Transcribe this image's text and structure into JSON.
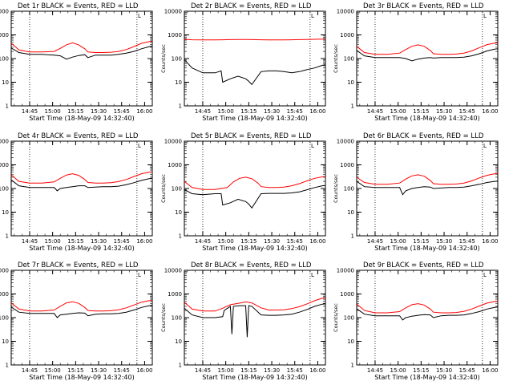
{
  "xlabel": "Start Time (18-May-09 14:32:40)",
  "ylabel": "Counts/sec",
  "x_tick_labels": [
    "14:45",
    "15:00",
    "15:15",
    "15:30",
    "15:45",
    "16:00"
  ],
  "y_tick_labels": [
    "1",
    "10",
    "100",
    "1000",
    "10000"
  ],
  "corner_mark": "L",
  "colors": {
    "events": "#000000",
    "lld": "#ff0000",
    "frame": "#000000"
  },
  "chart_data": [
    {
      "type": "line",
      "title": "Det 1r BLACK = Events, RED = LLD",
      "xlabel": "Start Time (18-May-09 14:32:40)",
      "ylabel": "Counts/sec",
      "yscale": "log",
      "ylim": [
        1,
        10000
      ],
      "vlines_min": [
        12,
        82
      ],
      "series": [
        {
          "name": "Events",
          "x": [
            0,
            5,
            12,
            20,
            28,
            32,
            36,
            40,
            44,
            48,
            50,
            55,
            60,
            65,
            70,
            75,
            80,
            85,
            90,
            92
          ],
          "y": [
            280,
            180,
            150,
            150,
            140,
            130,
            95,
            115,
            135,
            145,
            110,
            140,
            140,
            140,
            150,
            170,
            200,
            260,
            320,
            330
          ]
        },
        {
          "name": "LLD",
          "x": [
            0,
            5,
            12,
            20,
            28,
            32,
            36,
            40,
            44,
            48,
            50,
            55,
            60,
            65,
            70,
            75,
            80,
            85,
            90,
            92
          ],
          "y": [
            450,
            230,
            190,
            190,
            200,
            270,
            380,
            460,
            380,
            260,
            190,
            180,
            180,
            185,
            200,
            240,
            320,
            440,
            520,
            540
          ]
        }
      ]
    },
    {
      "type": "line",
      "title": "Det 2r BLACK = Events, RED = LLD",
      "xlabel": "Start Time (18-May-09 14:32:40)",
      "ylabel": "Counts/sec",
      "yscale": "log",
      "ylim": [
        1,
        10000
      ],
      "vlines_min": [
        12,
        82
      ],
      "series": [
        {
          "name": "Events",
          "x": [
            0,
            5,
            12,
            20,
            24,
            25,
            30,
            35,
            40,
            42,
            44,
            50,
            55,
            60,
            65,
            70,
            75,
            80,
            85,
            90,
            92
          ],
          "y": [
            90,
            40,
            25,
            25,
            30,
            10,
            14,
            18,
            14,
            11,
            8,
            28,
            30,
            30,
            28,
            25,
            28,
            34,
            40,
            52,
            55
          ]
        },
        {
          "name": "LLD",
          "x": [
            0,
            5,
            12,
            20,
            25,
            30,
            35,
            40,
            44,
            50,
            55,
            60,
            65,
            70,
            75,
            80,
            85,
            90,
            92
          ],
          "y": [
            650,
            620,
            610,
            615,
            620,
            630,
            640,
            635,
            630,
            620,
            615,
            610,
            615,
            620,
            630,
            640,
            650,
            660,
            660
          ]
        }
      ]
    },
    {
      "type": "line",
      "title": "Det 3r BLACK = Events, RED = LLD",
      "xlabel": "Start Time (18-May-09 14:32:40)",
      "ylabel": "Counts/sec",
      "yscale": "log",
      "ylim": [
        1,
        10000
      ],
      "vlines_min": [
        12,
        82
      ],
      "series": [
        {
          "name": "Events",
          "x": [
            0,
            5,
            12,
            20,
            28,
            32,
            36,
            40,
            44,
            48,
            50,
            55,
            60,
            65,
            70,
            75,
            80,
            85,
            90,
            92
          ],
          "y": [
            220,
            130,
            110,
            110,
            110,
            100,
            80,
            95,
            105,
            110,
            105,
            110,
            110,
            110,
            115,
            130,
            160,
            210,
            250,
            260
          ]
        },
        {
          "name": "LLD",
          "x": [
            0,
            5,
            12,
            20,
            28,
            32,
            36,
            40,
            44,
            48,
            50,
            55,
            60,
            65,
            70,
            75,
            80,
            85,
            90,
            92
          ],
          "y": [
            330,
            180,
            150,
            150,
            170,
            240,
            330,
            380,
            330,
            220,
            160,
            150,
            150,
            155,
            170,
            210,
            290,
            390,
            450,
            460
          ]
        }
      ]
    },
    {
      "type": "line",
      "title": "Det 4r BLACK = Events, RED = LLD",
      "xlabel": "Start Time (18-May-09 14:32:40)",
      "ylabel": "Counts/sec",
      "yscale": "log",
      "ylim": [
        1,
        10000
      ],
      "vlines_min": [
        12,
        82
      ],
      "series": [
        {
          "name": "Events",
          "x": [
            0,
            5,
            12,
            20,
            28,
            30,
            32,
            36,
            40,
            44,
            48,
            50,
            55,
            60,
            65,
            70,
            75,
            80,
            85,
            90,
            92
          ],
          "y": [
            230,
            130,
            110,
            110,
            110,
            80,
            100,
            110,
            120,
            130,
            130,
            110,
            115,
            120,
            120,
            125,
            145,
            175,
            220,
            260,
            270
          ]
        },
        {
          "name": "LLD",
          "x": [
            0,
            5,
            12,
            20,
            28,
            32,
            36,
            40,
            44,
            48,
            50,
            55,
            60,
            65,
            70,
            75,
            80,
            85,
            90,
            92
          ],
          "y": [
            380,
            200,
            170,
            170,
            190,
            270,
            370,
            420,
            360,
            240,
            180,
            170,
            170,
            175,
            195,
            240,
            320,
            420,
            490,
            500
          ]
        }
      ]
    },
    {
      "type": "line",
      "title": "Det 5r BLACK = Events, RED = LLD",
      "xlabel": "Start Time (18-May-09 14:32:40)",
      "ylabel": "Counts/sec",
      "yscale": "log",
      "ylim": [
        1,
        10000
      ],
      "vlines_min": [
        12,
        82
      ],
      "series": [
        {
          "name": "Events",
          "x": [
            0,
            5,
            12,
            20,
            24,
            25,
            30,
            35,
            40,
            42,
            44,
            50,
            55,
            60,
            65,
            70,
            75,
            80,
            85,
            90,
            92
          ],
          "y": [
            90,
            60,
            55,
            60,
            60,
            20,
            25,
            35,
            28,
            22,
            15,
            60,
            62,
            62,
            62,
            65,
            72,
            88,
            110,
            130,
            135
          ]
        },
        {
          "name": "LLD",
          "x": [
            0,
            5,
            12,
            20,
            28,
            32,
            36,
            40,
            44,
            48,
            50,
            55,
            60,
            65,
            70,
            75,
            80,
            85,
            90,
            92
          ],
          "y": [
            200,
            110,
            90,
            90,
            110,
            190,
            270,
            300,
            260,
            170,
            120,
            110,
            110,
            115,
            130,
            160,
            210,
            270,
            310,
            320
          ]
        }
      ]
    },
    {
      "type": "line",
      "title": "Det 6r BLACK = Events, RED = LLD",
      "xlabel": "Start Time (18-May-09 14:32:40)",
      "ylabel": "Counts/sec",
      "yscale": "log",
      "ylim": [
        1,
        10000
      ],
      "vlines_min": [
        12,
        82
      ],
      "series": [
        {
          "name": "Events",
          "x": [
            0,
            5,
            12,
            20,
            28,
            30,
            32,
            36,
            40,
            44,
            48,
            50,
            55,
            60,
            65,
            70,
            75,
            80,
            85,
            90,
            92
          ],
          "y": [
            200,
            120,
            110,
            110,
            110,
            55,
            80,
            100,
            110,
            120,
            115,
            100,
            105,
            110,
            110,
            115,
            130,
            150,
            180,
            200,
            205
          ]
        },
        {
          "name": "LLD",
          "x": [
            0,
            5,
            12,
            20,
            28,
            32,
            36,
            40,
            44,
            48,
            50,
            55,
            60,
            65,
            70,
            75,
            80,
            85,
            90,
            92
          ],
          "y": [
            300,
            180,
            150,
            150,
            170,
            250,
            340,
            380,
            330,
            220,
            160,
            150,
            150,
            155,
            170,
            210,
            280,
            360,
            420,
            430
          ]
        }
      ]
    },
    {
      "type": "line",
      "title": "Det 7r BLACK = Events, RED = LLD",
      "xlabel": "Start Time (18-May-09 14:32:40)",
      "ylabel": "Counts/sec",
      "yscale": "log",
      "ylim": [
        1,
        10000
      ],
      "vlines_min": [
        12,
        82
      ],
      "series": [
        {
          "name": "Events",
          "x": [
            0,
            5,
            12,
            20,
            28,
            30,
            32,
            36,
            40,
            44,
            48,
            50,
            55,
            60,
            65,
            70,
            75,
            80,
            85,
            90,
            92
          ],
          "y": [
            280,
            170,
            150,
            150,
            150,
            100,
            130,
            140,
            150,
            160,
            155,
            120,
            140,
            145,
            145,
            150,
            170,
            210,
            270,
            320,
            330
          ]
        },
        {
          "name": "LLD",
          "x": [
            0,
            5,
            12,
            20,
            28,
            32,
            36,
            40,
            44,
            48,
            50,
            55,
            60,
            65,
            70,
            75,
            80,
            85,
            90,
            92
          ],
          "y": [
            420,
            230,
            190,
            190,
            210,
            300,
            420,
            470,
            400,
            270,
            200,
            190,
            190,
            195,
            215,
            260,
            340,
            450,
            520,
            530
          ]
        }
      ]
    },
    {
      "type": "line",
      "title": "Det 8r BLACK = Events, RED = LLD",
      "xlabel": "Start Time (18-May-09 14:32:40)",
      "ylabel": "Counts/sec",
      "yscale": "log",
      "ylim": [
        1,
        10000
      ],
      "vlines_min": [
        12,
        82
      ],
      "series": [
        {
          "name": "Events",
          "x": [
            0,
            5,
            12,
            20,
            25,
            26,
            30,
            31,
            32,
            36,
            40,
            41,
            42,
            44,
            50,
            55,
            60,
            65,
            70,
            75,
            80,
            85,
            90,
            92
          ],
          "y": [
            250,
            130,
            100,
            100,
            110,
            200,
            300,
            20,
            300,
            320,
            320,
            15,
            320,
            300,
            130,
            125,
            125,
            130,
            140,
            170,
            220,
            300,
            370,
            380
          ]
        },
        {
          "name": "LLD",
          "x": [
            0,
            5,
            12,
            20,
            25,
            30,
            35,
            40,
            44,
            50,
            55,
            60,
            65,
            70,
            75,
            80,
            85,
            90,
            92
          ],
          "y": [
            450,
            230,
            190,
            190,
            250,
            350,
            400,
            460,
            420,
            260,
            210,
            210,
            215,
            240,
            290,
            380,
            520,
            660,
            680
          ]
        }
      ]
    },
    {
      "type": "line",
      "title": "Det 9r BLACK = Events, RED = LLD",
      "xlabel": "Start Time (18-May-09 14:32:40)",
      "ylabel": "Counts/sec",
      "yscale": "log",
      "ylim": [
        1,
        10000
      ],
      "vlines_min": [
        12,
        82
      ],
      "series": [
        {
          "name": "Events",
          "x": [
            0,
            5,
            12,
            20,
            28,
            30,
            32,
            36,
            40,
            44,
            48,
            50,
            55,
            60,
            65,
            70,
            75,
            80,
            85,
            90,
            92
          ],
          "y": [
            240,
            140,
            120,
            120,
            120,
            80,
            100,
            115,
            125,
            135,
            130,
            100,
            120,
            125,
            125,
            130,
            150,
            180,
            230,
            270,
            280
          ]
        },
        {
          "name": "LLD",
          "x": [
            0,
            5,
            12,
            20,
            28,
            32,
            36,
            40,
            44,
            48,
            50,
            55,
            60,
            65,
            70,
            75,
            80,
            85,
            90,
            92
          ],
          "y": [
            380,
            200,
            160,
            160,
            180,
            260,
            350,
            390,
            340,
            230,
            170,
            160,
            160,
            165,
            185,
            230,
            310,
            410,
            480,
            490
          ]
        }
      ]
    }
  ]
}
